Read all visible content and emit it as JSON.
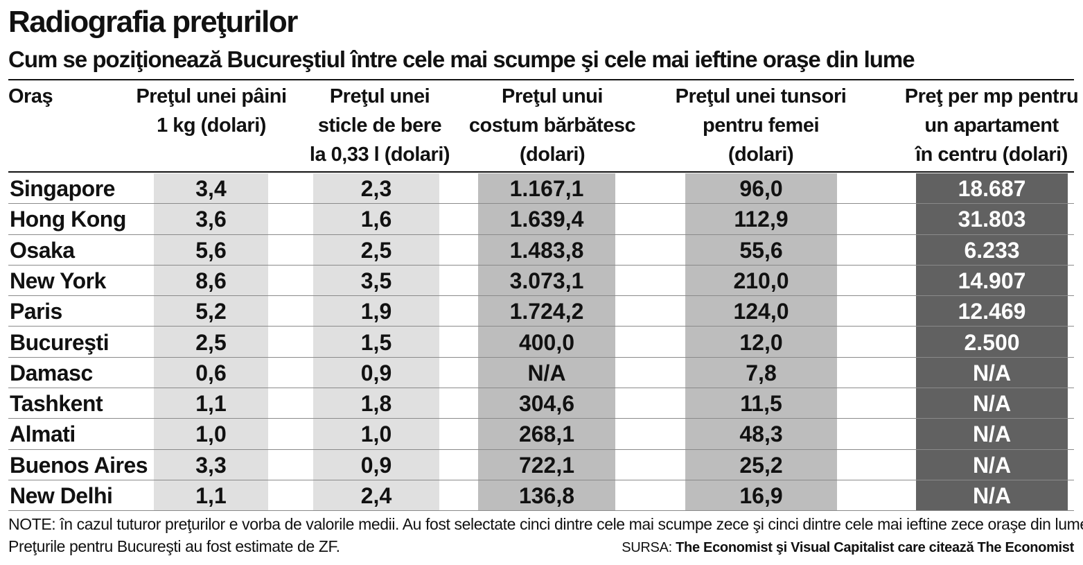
{
  "title": "Radiografia preţurilor",
  "subtitle": "Cum se poziţionează Bucureştiul între cele mai scumpe şi cele mai ieftine oraşe din lume",
  "colors": {
    "band_light": "#e0e0e0",
    "band_mid": "#bdbdbd",
    "band_dark": "#616161",
    "text_dark": "#111111",
    "text_on_dark": "#ffffff"
  },
  "chart_data": {
    "type": "table",
    "title": "Radiografia preţurilor",
    "subtitle": "Cum se poziţionează Bucureştiul între cele mai scumpe şi cele mai ieftine oraşe din lume",
    "columns": [
      {
        "lines": [
          "Oraş"
        ]
      },
      {
        "lines": [
          "Preţul unei pâini",
          "1 kg (dolari)"
        ]
      },
      {
        "lines": [
          "Preţul unei",
          "sticle de bere",
          "la 0,33 l (dolari)"
        ]
      },
      {
        "lines": [
          "Preţul unui",
          "costum bărbătesc",
          "(dolari)"
        ]
      },
      {
        "lines": [
          "Preţul unei tunsori",
          "pentru femei",
          "(dolari)"
        ]
      },
      {
        "lines": [
          "Preţ per mp pentru",
          "un apartament",
          "în centru (dolari)"
        ]
      }
    ],
    "rows": [
      [
        "Singapore",
        "3,4",
        "2,3",
        "1.167,1",
        "96,0",
        "18.687"
      ],
      [
        "Hong Kong",
        "3,6",
        "1,6",
        "1.639,4",
        "112,9",
        "31.803"
      ],
      [
        "Osaka",
        "5,6",
        "2,5",
        "1.483,8",
        "55,6",
        "6.233"
      ],
      [
        "New York",
        "8,6",
        "3,5",
        "3.073,1",
        "210,0",
        "14.907"
      ],
      [
        "Paris",
        "5,2",
        "1,9",
        "1.724,2",
        "124,0",
        "12.469"
      ],
      [
        "Bucureşti",
        "2,5",
        "1,5",
        "400,0",
        "12,0",
        "2.500"
      ],
      [
        "Damasc",
        "0,6",
        "0,9",
        "N/A",
        "7,8",
        "N/A"
      ],
      [
        "Tashkent",
        "1,1",
        "1,8",
        "304,6",
        "11,5",
        "N/A"
      ],
      [
        "Almati",
        "1,0",
        "1,0",
        "268,1",
        "48,3",
        "N/A"
      ],
      [
        "Buenos Aires",
        "3,3",
        "0,9",
        "722,1",
        "25,2",
        "N/A"
      ],
      [
        "New Delhi",
        "1,1",
        "2,4",
        "136,8",
        "16,9",
        "N/A"
      ]
    ]
  },
  "notes": {
    "line1": "NOTE: în cazul tuturor preţurilor e vorba de valorile medii. Au fost selectate cinci dintre cele mai scumpe zece şi cinci dintre cele mai ieftine zece oraşe din lume.",
    "line2": "Preţurile pentru Bucureşti au fost estimate de ZF."
  },
  "source": {
    "label": "SURSA:",
    "text": "The Economist şi Visual Capitalist care citează The Economist"
  }
}
